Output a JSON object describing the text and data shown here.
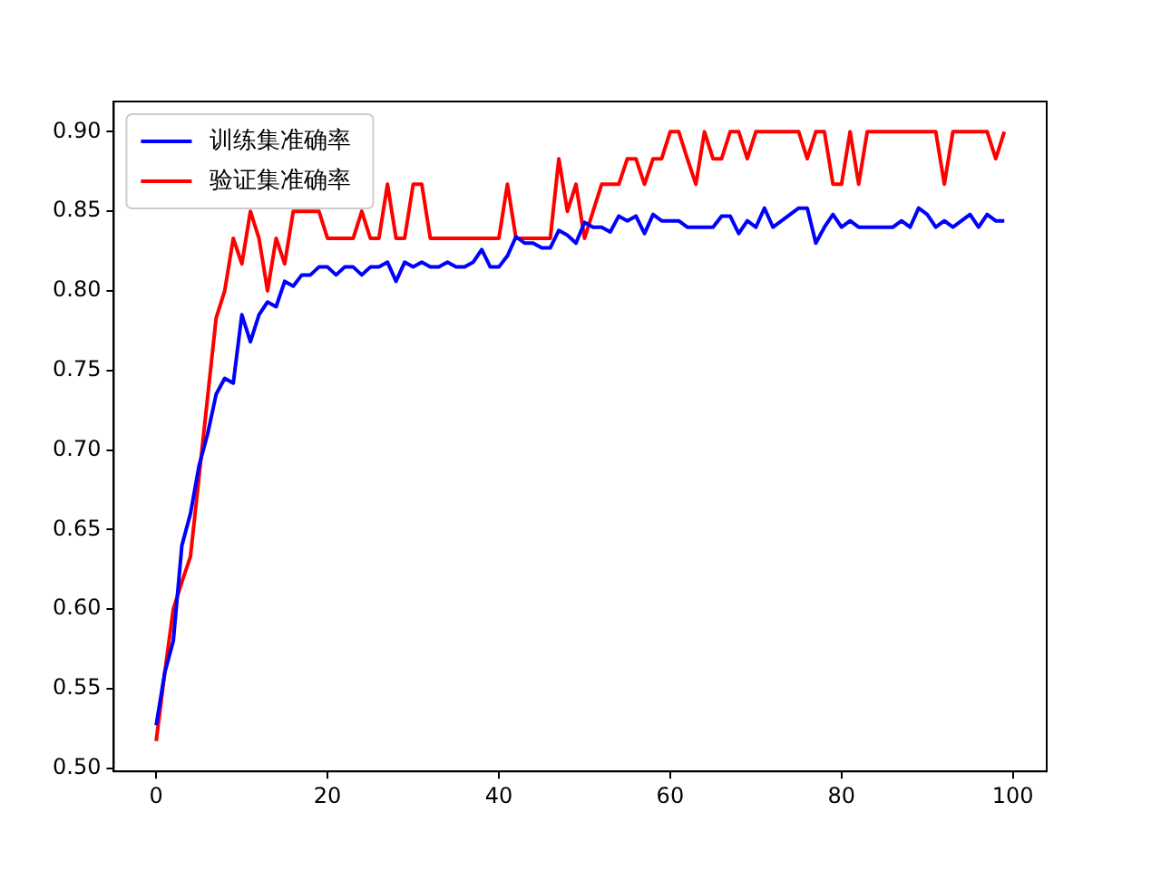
{
  "chart_data": {
    "type": "line",
    "x": [
      0,
      1,
      2,
      3,
      4,
      5,
      6,
      7,
      8,
      9,
      10,
      11,
      12,
      13,
      14,
      15,
      16,
      17,
      18,
      19,
      20,
      21,
      22,
      23,
      24,
      25,
      26,
      27,
      28,
      29,
      30,
      31,
      32,
      33,
      34,
      35,
      36,
      37,
      38,
      39,
      40,
      41,
      42,
      43,
      44,
      45,
      46,
      47,
      48,
      49,
      50,
      51,
      52,
      53,
      54,
      55,
      56,
      57,
      58,
      59,
      60,
      61,
      62,
      63,
      64,
      65,
      66,
      67,
      68,
      69,
      70,
      71,
      72,
      73,
      74,
      75,
      76,
      77,
      78,
      79,
      80,
      81,
      82,
      83,
      84,
      85,
      86,
      87,
      88,
      89,
      90,
      91,
      92,
      93,
      94,
      95,
      96,
      97,
      98,
      99
    ],
    "series": [
      {
        "name": "训练集准确率",
        "color": "#0000ff",
        "values": [
          0.527,
          0.56,
          0.58,
          0.64,
          0.66,
          0.69,
          0.71,
          0.735,
          0.745,
          0.742,
          0.785,
          0.768,
          0.785,
          0.793,
          0.79,
          0.806,
          0.803,
          0.81,
          0.81,
          0.815,
          0.815,
          0.81,
          0.815,
          0.815,
          0.81,
          0.815,
          0.815,
          0.818,
          0.806,
          0.818,
          0.815,
          0.818,
          0.815,
          0.815,
          0.818,
          0.815,
          0.815,
          0.818,
          0.826,
          0.815,
          0.815,
          0.822,
          0.834,
          0.83,
          0.83,
          0.827,
          0.827,
          0.838,
          0.835,
          0.83,
          0.843,
          0.84,
          0.84,
          0.837,
          0.847,
          0.844,
          0.847,
          0.836,
          0.848,
          0.844,
          0.844,
          0.844,
          0.84,
          0.84,
          0.84,
          0.84,
          0.847,
          0.847,
          0.836,
          0.844,
          0.84,
          0.852,
          0.84,
          0.844,
          0.848,
          0.852,
          0.852,
          0.83,
          0.84,
          0.848,
          0.84,
          0.844,
          0.84,
          0.84,
          0.84,
          0.84,
          0.84,
          0.844,
          0.84,
          0.852,
          0.848,
          0.84,
          0.844,
          0.84,
          0.844,
          0.848,
          0.84,
          0.848,
          0.844,
          0.844
        ]
      },
      {
        "name": "验证集准确率",
        "color": "#ff0000",
        "values": [
          0.517,
          0.56,
          0.6,
          0.617,
          0.633,
          0.683,
          0.733,
          0.783,
          0.8,
          0.833,
          0.817,
          0.85,
          0.833,
          0.8,
          0.833,
          0.817,
          0.85,
          0.85,
          0.85,
          0.85,
          0.833,
          0.833,
          0.833,
          0.833,
          0.85,
          0.833,
          0.833,
          0.867,
          0.833,
          0.833,
          0.867,
          0.867,
          0.833,
          0.833,
          0.833,
          0.833,
          0.833,
          0.833,
          0.833,
          0.833,
          0.833,
          0.867,
          0.833,
          0.833,
          0.833,
          0.833,
          0.833,
          0.883,
          0.85,
          0.867,
          0.833,
          0.85,
          0.867,
          0.867,
          0.867,
          0.883,
          0.883,
          0.867,
          0.883,
          0.883,
          0.9,
          0.9,
          0.883,
          0.867,
          0.9,
          0.883,
          0.883,
          0.9,
          0.9,
          0.883,
          0.9,
          0.9,
          0.9,
          0.9,
          0.9,
          0.9,
          0.883,
          0.9,
          0.9,
          0.867,
          0.867,
          0.9,
          0.867,
          0.9,
          0.9,
          0.9,
          0.9,
          0.9,
          0.9,
          0.9,
          0.9,
          0.9,
          0.867,
          0.9,
          0.9,
          0.9,
          0.9,
          0.9,
          0.883,
          0.9
        ]
      }
    ],
    "xlim": [
      -4.95,
      103.95
    ],
    "xticks": [
      0,
      20,
      40,
      60,
      80,
      100
    ],
    "ylim": [
      0.498,
      0.919
    ],
    "yticks": [
      {
        "value": 0.5,
        "label": "0.50"
      },
      {
        "value": 0.55,
        "label": "0.55"
      },
      {
        "value": 0.6,
        "label": "0.60"
      },
      {
        "value": 0.65,
        "label": "0.65"
      },
      {
        "value": 0.7,
        "label": "0.70"
      },
      {
        "value": 0.75,
        "label": "0.75"
      },
      {
        "value": 0.8,
        "label": "0.80"
      },
      {
        "value": 0.85,
        "label": "0.85"
      },
      {
        "value": 0.9,
        "label": "0.90"
      }
    ],
    "grid": false,
    "legend": "top left",
    "marker": "none",
    "line_style": "solid"
  }
}
